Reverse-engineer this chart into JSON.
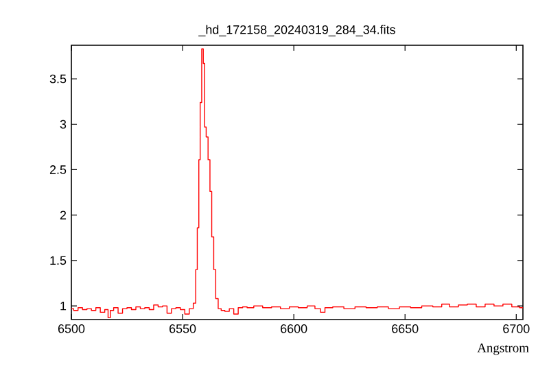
{
  "chart_data": {
    "type": "step",
    "title": "_hd_172158_20240319_284_34.fits",
    "xlabel": "Angstrom",
    "xlim": [
      6500,
      6703
    ],
    "ylim": [
      0.85,
      3.87
    ],
    "xticks": [
      6500,
      6550,
      6600,
      6650,
      6700
    ],
    "yticks": [
      1,
      1.5,
      2,
      2.5,
      3,
      3.5
    ],
    "series": [
      {
        "color": "#ff0000",
        "x": [
          6500,
          6502,
          6504,
          6506,
          6508,
          6510,
          6512,
          6514,
          6516,
          6517,
          6518,
          6520,
          6522,
          6524,
          6526,
          6528,
          6530,
          6532,
          6534,
          6536,
          6538,
          6540,
          6542,
          6544,
          6546,
          6548,
          6550,
          6552,
          6554,
          6555.6,
          6556.2,
          6557.0,
          6557.6,
          6558.2,
          6559.0,
          6559.6,
          6560.2,
          6561.0,
          6561.9,
          6562.7,
          6563.5,
          6564.5,
          6565.3,
          6566.7,
          6568,
          6570,
          6572,
          6574,
          6576,
          6578,
          6580,
          6584,
          6588,
          6592,
          6596,
          6600,
          6604,
          6608,
          6611,
          6613,
          6615,
          6620,
          6625,
          6630,
          6635,
          6640,
          6645,
          6650,
          6655,
          6660,
          6665,
          6668,
          6672,
          6676,
          6680,
          6684,
          6688,
          6692,
          6696,
          6700,
          6703
        ],
        "values": [
          0.97,
          0.95,
          0.98,
          0.96,
          0.97,
          0.95,
          0.98,
          0.93,
          0.96,
          0.87,
          0.95,
          0.98,
          0.92,
          0.97,
          0.98,
          0.96,
          0.99,
          0.97,
          0.98,
          0.96,
          1.01,
          0.99,
          1.0,
          0.92,
          0.97,
          0.98,
          0.96,
          0.91,
          0.97,
          1.03,
          1.4,
          1.86,
          2.61,
          3.24,
          3.83,
          3.67,
          2.97,
          2.86,
          2.61,
          2.26,
          1.76,
          1.4,
          1.08,
          0.97,
          0.95,
          0.94,
          0.97,
          0.91,
          0.98,
          0.99,
          0.98,
          1.0,
          0.98,
          0.99,
          0.97,
          0.99,
          0.98,
          1.0,
          0.97,
          0.93,
          0.98,
          0.99,
          0.97,
          0.99,
          0.98,
          0.99,
          0.97,
          0.99,
          0.98,
          1.0,
          0.99,
          1.02,
          0.99,
          1.01,
          1.02,
          0.99,
          1.02,
          1.0,
          1.02,
          0.99,
          0.98
        ]
      }
    ]
  }
}
